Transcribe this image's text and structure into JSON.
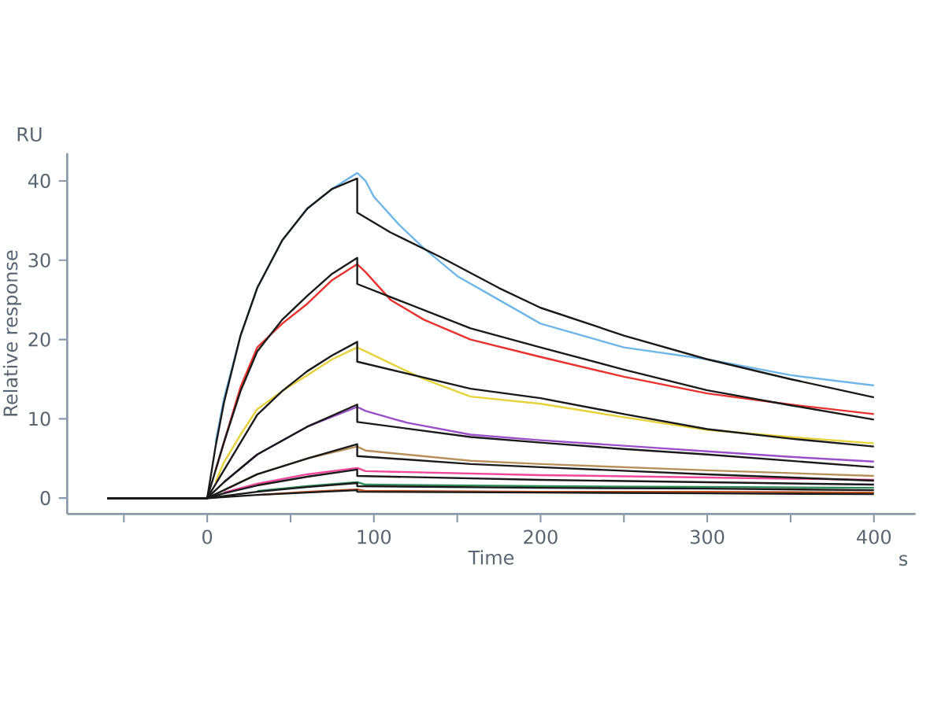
{
  "chart_data": {
    "type": "line",
    "xlabel": "Time",
    "ylabel": "Relative response",
    "annotations": [
      "RU",
      "s"
    ],
    "xlim": [
      -84,
      425
    ],
    "ylim": [
      -2,
      43.5
    ],
    "xticks": [
      {
        "value": -50,
        "label": null
      },
      0,
      {
        "value": 50,
        "label": null
      },
      100,
      {
        "value": 150,
        "label": null
      },
      200,
      {
        "value": 250,
        "label": null
      },
      300,
      {
        "value": 350,
        "label": null
      },
      400
    ],
    "yticks": [
      0,
      10,
      20,
      30,
      40
    ],
    "series": [
      {
        "color": "#6fb7e8",
        "x": [
          5,
          10,
          20,
          30,
          45,
          60,
          75,
          90,
          95,
          100,
          115,
          130,
          150,
          175,
          200,
          250,
          300,
          350,
          400
        ],
        "values": [
          7,
          12.5,
          20.5,
          26.5,
          32.5,
          36.5,
          39,
          41,
          40,
          38,
          34.5,
          31.5,
          28,
          25,
          22,
          19,
          17.5,
          15.5,
          14.2
        ]
      },
      {
        "color": "#e8322e",
        "x": [
          5,
          10,
          20,
          30,
          45,
          60,
          75,
          90,
          95,
          110,
          130,
          158,
          200,
          250,
          300,
          350,
          400
        ],
        "values": [
          3.5,
          7,
          14,
          19,
          22,
          24.5,
          27.5,
          29.5,
          28.5,
          25,
          22.5,
          20,
          17.8,
          15.3,
          13.2,
          11.8,
          10.6
        ]
      },
      {
        "color": "#e6d23a",
        "x": [
          5,
          10,
          20,
          30,
          45,
          60,
          75,
          90,
          95,
          110,
          130,
          158,
          200,
          250,
          300,
          350,
          400
        ],
        "values": [
          2,
          4.5,
          8,
          11.2,
          13.5,
          15.5,
          17.5,
          19,
          18.5,
          17,
          15,
          12.8,
          11.9,
          10.2,
          8.6,
          7.7,
          6.9
        ]
      },
      {
        "color": "#9b4fc8",
        "x": [
          10,
          30,
          60,
          90,
          95,
          120,
          158,
          200,
          250,
          300,
          350,
          400
        ],
        "values": [
          2,
          5.5,
          9,
          11.5,
          11,
          9.5,
          8,
          7.3,
          6.6,
          5.9,
          5.2,
          4.6
        ]
      },
      {
        "color": "#b8915a",
        "x": [
          10,
          30,
          60,
          90,
          95,
          158,
          200,
          300,
          400
        ],
        "values": [
          1,
          3,
          5,
          6.5,
          6,
          4.7,
          4.3,
          3.5,
          2.8
        ]
      },
      {
        "color": "#f0479a",
        "x": [
          10,
          30,
          60,
          90,
          95,
          200,
          300,
          400
        ],
        "values": [
          0.7,
          1.8,
          3,
          3.8,
          3.4,
          2.9,
          2.6,
          2.3
        ]
      },
      {
        "color": "#2e8b57",
        "x": [
          30,
          60,
          90,
          95,
          200,
          300,
          400
        ],
        "values": [
          0.9,
          1.5,
          2,
          1.7,
          1.5,
          1.4,
          1.3
        ]
      },
      {
        "color": "#c0501f",
        "x": [
          30,
          60,
          90,
          95,
          200,
          300,
          400
        ],
        "values": [
          0.4,
          0.8,
          1.1,
          0.9,
          0.8,
          0.8,
          0.7
        ]
      },
      {
        "color": "#1a1a1a",
        "x": [
          -60,
          0,
          5,
          10,
          20,
          30,
          45,
          60,
          75,
          90,
          90,
          110,
          140,
          175,
          200,
          250,
          300,
          350,
          400
        ],
        "values": [
          0,
          0,
          6.5,
          12,
          20.5,
          26.5,
          32.5,
          36.5,
          39,
          40.3,
          36,
          33.5,
          30.4,
          26.5,
          24,
          20.5,
          17.5,
          15,
          12.7
        ]
      },
      {
        "color": "#1a1a1a",
        "x": [
          -60,
          0,
          5,
          10,
          20,
          30,
          45,
          60,
          75,
          90,
          90,
          158,
          200,
          250,
          300,
          350,
          400
        ],
        "values": [
          0,
          0,
          3.5,
          7,
          13.5,
          18.5,
          22.5,
          25.5,
          28.3,
          30.3,
          27,
          21.4,
          19,
          16.2,
          13.6,
          11.7,
          9.9
        ]
      },
      {
        "color": "#1a1a1a",
        "x": [
          -60,
          0,
          10,
          20,
          30,
          45,
          60,
          75,
          90,
          90,
          158,
          200,
          250,
          300,
          350,
          400
        ],
        "values": [
          0,
          0,
          3.5,
          7,
          10.5,
          13.5,
          16,
          18,
          19.7,
          17.2,
          13.8,
          12.6,
          10.6,
          8.7,
          7.5,
          6.5
        ]
      },
      {
        "color": "#1a1a1a",
        "x": [
          -60,
          0,
          10,
          30,
          60,
          90,
          90,
          158,
          200,
          250,
          300,
          350,
          400
        ],
        "values": [
          0,
          0,
          2,
          5.5,
          9,
          11.8,
          9.6,
          7.7,
          7,
          6.2,
          5.5,
          4.7,
          3.9
        ]
      },
      {
        "color": "#1a1a1a",
        "x": [
          -60,
          0,
          10,
          30,
          60,
          90,
          90,
          158,
          200,
          300,
          400
        ],
        "values": [
          0,
          0,
          1,
          3,
          5,
          6.8,
          5.3,
          4.3,
          3.9,
          3,
          2.2
        ]
      },
      {
        "color": "#1a1a1a",
        "x": [
          -60,
          0,
          10,
          30,
          60,
          90,
          90,
          200,
          300,
          400
        ],
        "values": [
          0,
          0,
          0.6,
          1.6,
          2.7,
          3.6,
          2.8,
          2.3,
          2,
          1.7
        ]
      },
      {
        "color": "#1a1a1a",
        "x": [
          -60,
          0,
          30,
          60,
          90,
          90,
          200,
          300,
          400
        ],
        "values": [
          0,
          0,
          0.8,
          1.4,
          1.9,
          1.5,
          1.3,
          1.2,
          1
        ]
      },
      {
        "color": "#1a1a1a",
        "x": [
          -60,
          0,
          30,
          60,
          90,
          90,
          200,
          300,
          400
        ],
        "values": [
          0,
          0,
          0.4,
          0.7,
          1,
          0.8,
          0.7,
          0.6,
          0.5
        ]
      }
    ]
  }
}
